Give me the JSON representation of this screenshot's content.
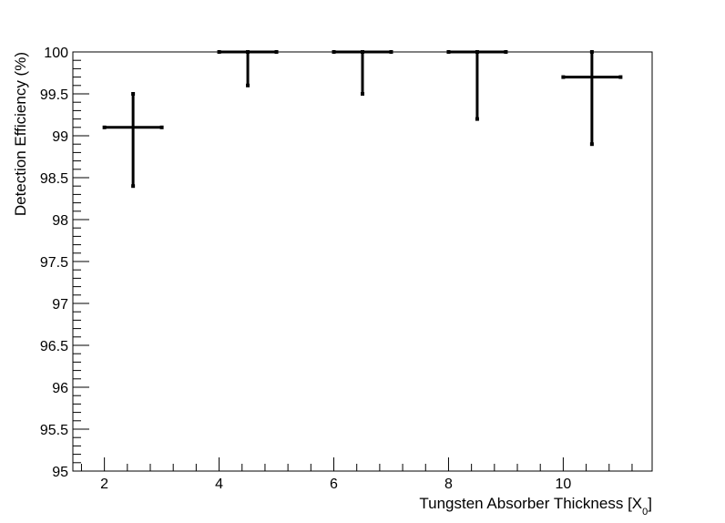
{
  "chart_data": {
    "type": "scatter",
    "title": "",
    "xlabel": "Tungsten Absorber Thickness [X",
    "xlabel_sub": "0",
    "xlabel_close": "]",
    "ylabel": "Detection Efficiency (%)",
    "xlim": [
      1.45,
      11.55
    ],
    "ylim": [
      95,
      100
    ],
    "xticks": [
      2,
      4,
      6,
      8,
      10
    ],
    "xtick_labels": [
      "2",
      "4",
      "6",
      "8",
      "10"
    ],
    "yticks": [
      95,
      95.5,
      96,
      96.5,
      97,
      97.5,
      98,
      98.5,
      99,
      99.5,
      100
    ],
    "ytick_labels": [
      "95",
      "95.5",
      "96",
      "96.5",
      "97",
      "97.5",
      "98",
      "98.5",
      "99",
      "99.5",
      "100"
    ],
    "grid": false,
    "series": [
      {
        "points": [
          {
            "x": 2.5,
            "y": 99.1,
            "xerr": 0.5,
            "yerr_low": 0.7,
            "yerr_high": 0.4
          },
          {
            "x": 4.5,
            "y": 100,
            "xerr": 0.5,
            "yerr_low": 0.4,
            "yerr_high": 0
          },
          {
            "x": 6.5,
            "y": 100,
            "xerr": 0.5,
            "yerr_low": 0.5,
            "yerr_high": 0
          },
          {
            "x": 8.5,
            "y": 100,
            "xerr": 0.5,
            "yerr_low": 0.8,
            "yerr_high": 0
          },
          {
            "x": 10.5,
            "y": 99.7,
            "xerr": 0.5,
            "yerr_low": 0.8,
            "yerr_high": 0.3
          }
        ]
      }
    ]
  }
}
